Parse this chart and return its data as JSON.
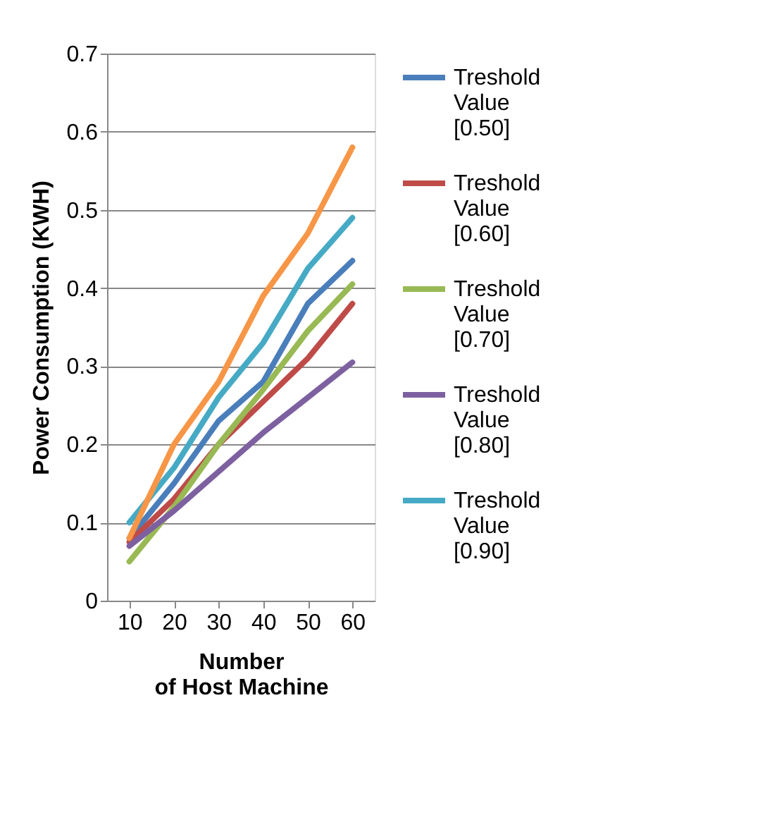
{
  "chart_data": {
    "type": "line",
    "xlabel": "Number of Host Machine",
    "ylabel": "Power  Consumption  (KWH)",
    "categories": [
      "10",
      "20",
      "30",
      "40",
      "50",
      "60"
    ],
    "series": [
      {
        "name": "Treshold Value [0.50]",
        "color": "#4a7ebb",
        "values": [
          0.08,
          0.15,
          0.23,
          0.28,
          0.38,
          0.435
        ]
      },
      {
        "name": "Treshold Value [0.60]",
        "color": "#be4b48",
        "values": [
          0.075,
          0.13,
          0.2,
          0.255,
          0.31,
          0.38
        ]
      },
      {
        "name": "Treshold Value [0.70]",
        "color": "#98b954",
        "values": [
          0.05,
          0.12,
          0.2,
          0.27,
          0.345,
          0.405
        ]
      },
      {
        "name": "Treshold Value [0.80]",
        "color": "#7d60a0",
        "values": [
          0.07,
          0.115,
          0.165,
          0.215,
          0.26,
          0.305
        ]
      },
      {
        "name": "Treshold Value [0.90]",
        "color": "#46aac5",
        "values": [
          0.1,
          0.17,
          0.26,
          0.33,
          0.425,
          0.49
        ]
      },
      {
        "color": "#f79646",
        "values": [
          0.08,
          0.2,
          0.28,
          0.39,
          0.47,
          0.58
        ]
      }
    ],
    "ylim": [
      0,
      0.7
    ],
    "yticks": [
      0,
      0.1,
      0.2,
      0.3,
      0.4,
      0.5,
      0.6,
      0.7
    ],
    "grid": "y",
    "legend": "right",
    "marker": "none",
    "line_style": "solid"
  }
}
